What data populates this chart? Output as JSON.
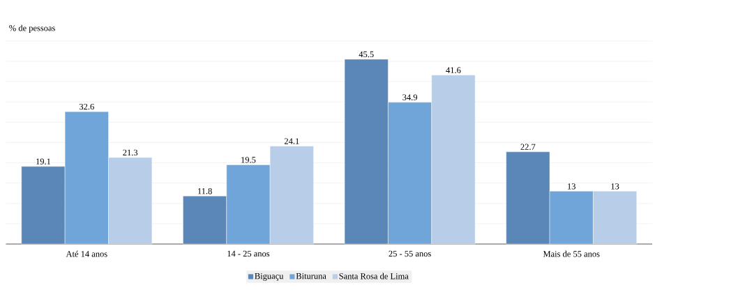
{
  "chart_data": {
    "type": "bar",
    "ylabel": "% de pessoas",
    "categories": [
      "Até 14 anos",
      "14 - 25 anos",
      "25 - 55 anos",
      "Mais de 55 anos"
    ],
    "series": [
      {
        "name": "Biguaçu",
        "color": "#5b87b8",
        "values": [
          19.1,
          11.8,
          45.5,
          22.7
        ]
      },
      {
        "name": "Bituruna",
        "color": "#6fa5d9",
        "values": [
          32.6,
          19.5,
          34.9,
          13
        ]
      },
      {
        "name": "Santa Rosa de Lima",
        "color": "#b7cde8",
        "values": [
          21.3,
          24.1,
          41.6,
          13
        ]
      }
    ],
    "ylim": [
      0,
      50
    ],
    "yticks": [
      {
        "value": 0,
        "label": null
      },
      {
        "value": 5,
        "label": null
      },
      {
        "value": 10,
        "label": null
      },
      {
        "value": 15,
        "label": null
      },
      {
        "value": 20,
        "label": null
      },
      {
        "value": 25,
        "label": null
      },
      {
        "value": 30,
        "label": null
      },
      {
        "value": 35,
        "label": null
      },
      {
        "value": 40,
        "label": null
      },
      {
        "value": 45,
        "label": null
      },
      {
        "value": 50,
        "label": null
      }
    ],
    "tick_labels": "x",
    "grid": "y",
    "legend": "bottom",
    "data_labels": true
  }
}
